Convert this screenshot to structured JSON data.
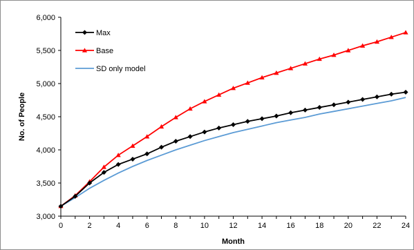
{
  "chart_data": {
    "type": "line",
    "title": "",
    "xlabel": "Month",
    "ylabel": "No. of People",
    "xlim": [
      0,
      24
    ],
    "ylim": [
      3000,
      6000
    ],
    "x_ticks": [
      0,
      2,
      4,
      6,
      8,
      10,
      12,
      14,
      16,
      18,
      20,
      22,
      24
    ],
    "y_ticks": [
      3000,
      3500,
      4000,
      4500,
      5000,
      5500,
      6000
    ],
    "y_tick_labels": [
      "3,000",
      "3,500",
      "4,000",
      "4,500",
      "5,000",
      "5,500",
      "6,000"
    ],
    "grid": false,
    "legend_position": "top-left",
    "x": [
      0,
      1,
      2,
      3,
      4,
      5,
      6,
      7,
      8,
      9,
      10,
      11,
      12,
      13,
      14,
      15,
      16,
      17,
      18,
      19,
      20,
      21,
      22,
      23,
      24
    ],
    "series": [
      {
        "name": "Max",
        "color": "#000000",
        "marker": "diamond",
        "values": [
          3150,
          3300,
          3500,
          3660,
          3780,
          3860,
          3940,
          4040,
          4130,
          4200,
          4270,
          4330,
          4380,
          4430,
          4470,
          4510,
          4560,
          4600,
          4640,
          4680,
          4720,
          4760,
          4800,
          4840,
          4870
        ]
      },
      {
        "name": "Base",
        "color": "#ff0000",
        "marker": "triangle",
        "values": [
          3150,
          3310,
          3520,
          3740,
          3920,
          4060,
          4200,
          4350,
          4490,
          4620,
          4730,
          4830,
          4930,
          5010,
          5090,
          5160,
          5230,
          5300,
          5370,
          5430,
          5500,
          5570,
          5630,
          5700,
          5770
        ]
      },
      {
        "name": "SD only model",
        "color": "#5b9bd5",
        "marker": "none",
        "values": [
          3150,
          3280,
          3420,
          3540,
          3650,
          3750,
          3840,
          3920,
          4000,
          4070,
          4140,
          4200,
          4260,
          4310,
          4360,
          4410,
          4450,
          4490,
          4540,
          4580,
          4620,
          4660,
          4700,
          4740,
          4790
        ]
      }
    ]
  }
}
